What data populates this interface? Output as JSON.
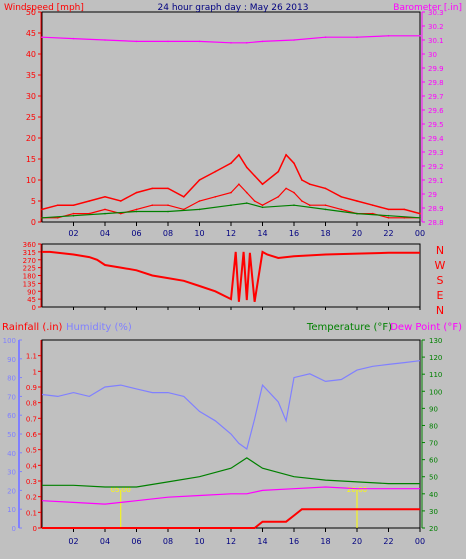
{
  "colors": {
    "background": "#c0c0c0",
    "wind": "#ff0000",
    "gust": "#ff0000",
    "avg_wind": "#008000",
    "barometer": "#ff00ff",
    "direction": "#ff0000",
    "rain": "#ff0000",
    "humidity": "#8080ff",
    "temperature": "#008000",
    "dew_point": "#ff00ff",
    "title": "#000080",
    "grid": "#000000",
    "sun": "#ffff00"
  },
  "chart_data": [
    {
      "type": "line",
      "title": "24 hour graph day : May 26 2013",
      "ylabel_left": "Windspeed [mph]",
      "ylabel_right": "Barometer [.in]",
      "x_ticks": [
        "02",
        "04",
        "06",
        "08",
        "10",
        "12",
        "14",
        "16",
        "18",
        "20",
        "22",
        "00"
      ],
      "ylim_left": [
        0,
        50
      ],
      "yticks_left": [
        "0",
        "5",
        "10",
        "15",
        "20",
        "25",
        "30",
        "35",
        "40",
        "45",
        "50"
      ],
      "ylim_right": [
        28.8,
        30.3
      ],
      "yticks_right": [
        "28.8",
        "28.9",
        "29",
        "29.1",
        "29.2",
        "29.3",
        "29.4",
        "29.5",
        "29.6",
        "29.7",
        "29.8",
        "29.9",
        "30",
        "30.1",
        "30.2",
        "30.3"
      ],
      "series": [
        {
          "key": "gust",
          "x": [
            0,
            1,
            2,
            3,
            4,
            5,
            6,
            7,
            8,
            9,
            10,
            11,
            12,
            12.5,
            13,
            13.5,
            14,
            15,
            15.5,
            16,
            16.5,
            17,
            18,
            19,
            20,
            21,
            22,
            23,
            24
          ],
          "values": [
            3,
            4,
            4,
            5,
            6,
            5,
            7,
            8,
            8,
            6,
            10,
            12,
            14,
            16,
            13,
            11,
            9,
            12,
            16,
            14,
            10,
            9,
            8,
            6,
            5,
            4,
            3,
            3,
            2
          ]
        },
        {
          "key": "wind",
          "x": [
            0,
            1,
            2,
            3,
            4,
            5,
            6,
            7,
            8,
            9,
            10,
            11,
            12,
            12.5,
            13,
            13.5,
            14,
            15,
            15.5,
            16,
            16.5,
            17,
            18,
            19,
            20,
            21,
            22,
            23,
            24
          ],
          "values": [
            1,
            1,
            2,
            2,
            3,
            2,
            3,
            4,
            4,
            3,
            5,
            6,
            7,
            9,
            7,
            5,
            4,
            6,
            8,
            7,
            5,
            4,
            4,
            3,
            2,
            2,
            1,
            1,
            1
          ]
        },
        {
          "key": "avg_wind",
          "x": [
            0,
            2,
            4,
            6,
            8,
            10,
            12,
            13,
            14,
            16,
            18,
            20,
            22,
            24
          ],
          "values": [
            1,
            1.5,
            2,
            2.5,
            2.5,
            3,
            4,
            4.5,
            3.5,
            4,
            3,
            2,
            1.5,
            1
          ]
        },
        {
          "key": "barometer",
          "x": [
            0,
            2,
            4,
            6,
            8,
            10,
            12,
            13,
            14,
            16,
            18,
            20,
            22,
            24
          ],
          "values": [
            30.12,
            30.11,
            30.1,
            30.09,
            30.09,
            30.09,
            30.08,
            30.08,
            30.09,
            30.1,
            30.12,
            30.12,
            30.13,
            30.13
          ]
        }
      ]
    },
    {
      "type": "line",
      "ylabel_right": "N W S E N",
      "x_ticks": [
        "02",
        "04",
        "06",
        "08",
        "10",
        "12",
        "14",
        "16",
        "18",
        "20",
        "22",
        "00"
      ],
      "ylim_left": [
        0,
        360
      ],
      "yticks_left": [
        "0",
        "45",
        "90",
        "135",
        "180",
        "225",
        "270",
        "315",
        "360"
      ],
      "compass": [
        "N",
        "W",
        "S",
        "E",
        "N"
      ],
      "series": [
        {
          "key": "direction",
          "x": [
            0,
            0.5,
            2,
            3,
            3.5,
            4,
            5,
            6,
            7,
            8,
            9,
            10,
            11,
            12,
            12.3,
            12.5,
            12.8,
            13,
            13.2,
            13.5,
            14,
            14.3,
            15,
            16,
            18,
            20,
            22,
            24
          ],
          "values": [
            315,
            315,
            300,
            285,
            270,
            240,
            225,
            210,
            180,
            165,
            150,
            120,
            90,
            45,
            315,
            30,
            315,
            40,
            310,
            30,
            315,
            300,
            280,
            290,
            300,
            305,
            310,
            310
          ]
        }
      ]
    },
    {
      "type": "line",
      "ylabel_left_rain": "Rainfall (.in)",
      "ylabel_left_humidity": "Humidity (%)",
      "ylabel_right_temperature": "Temperature (°F)",
      "ylabel_right_dew": "Dew Point (°F)",
      "x_ticks": [
        "02",
        "04",
        "06",
        "08",
        "10",
        "12",
        "14",
        "16",
        "18",
        "20",
        "22",
        "00"
      ],
      "ylim_rain": [
        0,
        1.2
      ],
      "yticks_rain": [
        "0",
        "0.1",
        "0.2",
        "0.3",
        "0.4",
        "0.5",
        "0.6",
        "0.7",
        "0.8",
        "0.9",
        "1",
        "1.1"
      ],
      "ylim_humidity": [
        0,
        100
      ],
      "yticks_humidity": [
        "0",
        "10",
        "20",
        "30",
        "40",
        "50",
        "60",
        "70",
        "80",
        "90",
        "100"
      ],
      "ylim_temp": [
        20,
        130
      ],
      "yticks_temp": [
        "20",
        "30",
        "40",
        "50",
        "60",
        "70",
        "80",
        "90",
        "100",
        "110",
        "120",
        "130"
      ],
      "sun_labels": [
        "05:00",
        "20:00"
      ],
      "series": [
        {
          "key": "humidity",
          "x": [
            0,
            1,
            2,
            3,
            4,
            5,
            6,
            7,
            8,
            9,
            10,
            11,
            12,
            12.5,
            13,
            13.5,
            14,
            15,
            15.5,
            16,
            17,
            18,
            19,
            20,
            21,
            22,
            23,
            24
          ],
          "values": [
            71,
            70,
            72,
            70,
            75,
            76,
            74,
            72,
            72,
            70,
            62,
            57,
            50,
            45,
            42,
            58,
            76,
            67,
            57,
            80,
            82,
            78,
            79,
            84,
            86,
            87,
            88,
            89
          ]
        },
        {
          "key": "temperature",
          "x": [
            0,
            2,
            4,
            6,
            8,
            10,
            12,
            13,
            14,
            16,
            18,
            20,
            22,
            24
          ],
          "values": [
            45,
            45,
            44,
            44,
            47,
            50,
            55,
            61,
            55,
            50,
            48,
            47,
            46,
            46
          ]
        },
        {
          "key": "dew_point",
          "x": [
            0,
            2,
            4,
            6,
            8,
            10,
            12,
            13,
            14,
            16,
            18,
            20,
            22,
            24
          ],
          "values": [
            36,
            35,
            34,
            36,
            38,
            39,
            40,
            40,
            42,
            43,
            44,
            43,
            43,
            43
          ]
        },
        {
          "key": "rain",
          "x": [
            0,
            13.5,
            14,
            14.5,
            15.5,
            16,
            16.5,
            19.5,
            20,
            24
          ],
          "values": [
            0,
            0,
            0.04,
            0.04,
            0.04,
            0.08,
            0.12,
            0.12,
            0.12,
            0.12
          ]
        }
      ]
    }
  ]
}
